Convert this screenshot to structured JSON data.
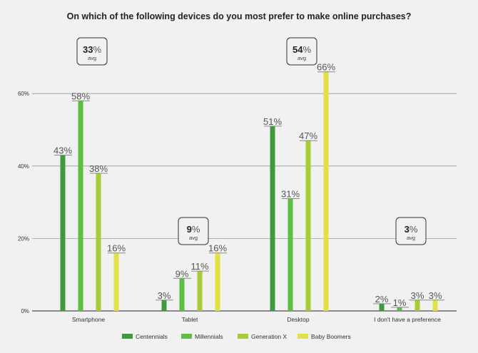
{
  "chart_data": {
    "type": "bar",
    "title": "On which of the following devices do you most prefer to make online purchases?",
    "categories": [
      "Smartphone",
      "Tablet",
      "Desktop",
      "I don't have a preference"
    ],
    "series": [
      {
        "name": "Centennials",
        "values": [
          43,
          3,
          51,
          2
        ],
        "color": "#3f9a3c"
      },
      {
        "name": "Millennials",
        "values": [
          58,
          9,
          31,
          1
        ],
        "color": "#5cbf44"
      },
      {
        "name": "Generation X",
        "values": [
          38,
          11,
          47,
          3
        ],
        "color": "#a6cc3a"
      },
      {
        "name": "Baby Boomers",
        "values": [
          16,
          16,
          66,
          3
        ],
        "color": "#e3e244"
      }
    ],
    "averages": [
      {
        "value": "33",
        "unit": "%",
        "label": "avg"
      },
      {
        "value": "9",
        "unit": "%",
        "label": "avg"
      },
      {
        "value": "54",
        "unit": "%",
        "label": "avg"
      },
      {
        "value": "3",
        "unit": "%",
        "label": "avg"
      }
    ],
    "yticks": [
      "0%",
      "20%",
      "40%",
      "60%"
    ],
    "ylim": [
      0,
      70
    ],
    "grid": true,
    "legend_position": "bottom"
  }
}
